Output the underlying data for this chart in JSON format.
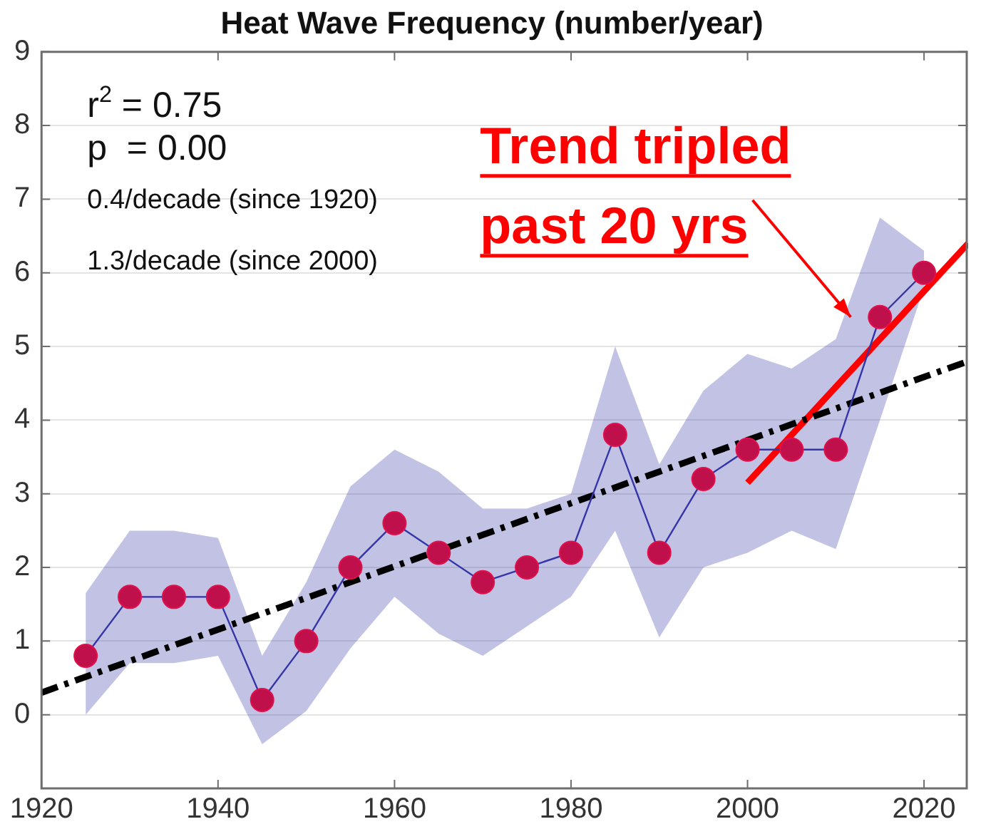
{
  "chart_data": {
    "type": "line",
    "title": "Heat Wave Frequency (number/year)",
    "x": [
      1925,
      1930,
      1935,
      1940,
      1945,
      1950,
      1955,
      1960,
      1965,
      1970,
      1975,
      1980,
      1985,
      1990,
      1995,
      2000,
      2005,
      2010,
      2015,
      2020
    ],
    "series": [
      {
        "color": "#3535a8",
        "marker": "circle",
        "values": [
          0.8,
          1.6,
          1.6,
          1.6,
          0.2,
          1.0,
          2.0,
          2.6,
          2.2,
          1.8,
          2.0,
          2.2,
          3.8,
          2.2,
          3.2,
          3.6,
          3.6,
          3.6,
          5.4,
          6.0
        ],
        "lower": [
          0.0,
          0.7,
          0.7,
          0.8,
          -0.4,
          0.05,
          0.9,
          1.6,
          1.1,
          0.8,
          1.2,
          1.6,
          2.5,
          1.05,
          2.0,
          2.2,
          2.5,
          2.25,
          4.0,
          5.8
        ],
        "upper": [
          1.65,
          2.5,
          2.5,
          2.4,
          0.8,
          1.8,
          3.1,
          3.6,
          3.3,
          2.8,
          2.8,
          3.0,
          5.0,
          3.4,
          4.4,
          4.9,
          4.7,
          5.1,
          6.75,
          6.3
        ]
      },
      {
        "color": "#000000",
        "marker": "none",
        "line_style": "dashed",
        "x": [
          1920,
          2025
        ],
        "values": [
          0.3,
          4.8
        ]
      },
      {
        "color": "#ff0000",
        "marker": "none",
        "line_style": "solid",
        "x": [
          2000,
          2025
        ],
        "values": [
          3.15,
          6.4
        ]
      }
    ],
    "xlim": [
      1920,
      2025
    ],
    "xticks": [
      1920,
      1940,
      1960,
      1980,
      2000,
      2020
    ],
    "ylim": [
      -1,
      9
    ],
    "yticks": [
      0,
      1,
      2,
      3,
      4,
      5,
      6,
      7,
      8,
      9
    ],
    "grid": "y",
    "legend": false,
    "annotations": [
      "r$^{2}$ = 0.75",
      "p  = 0.00",
      "0.4/decade (since 1920)",
      "1.3/decade (since 2000)",
      {
        "text": "Trend tripled\npast 20 yrs",
        "x": 2011.7,
        "y": 5.4
      }
    ]
  }
}
